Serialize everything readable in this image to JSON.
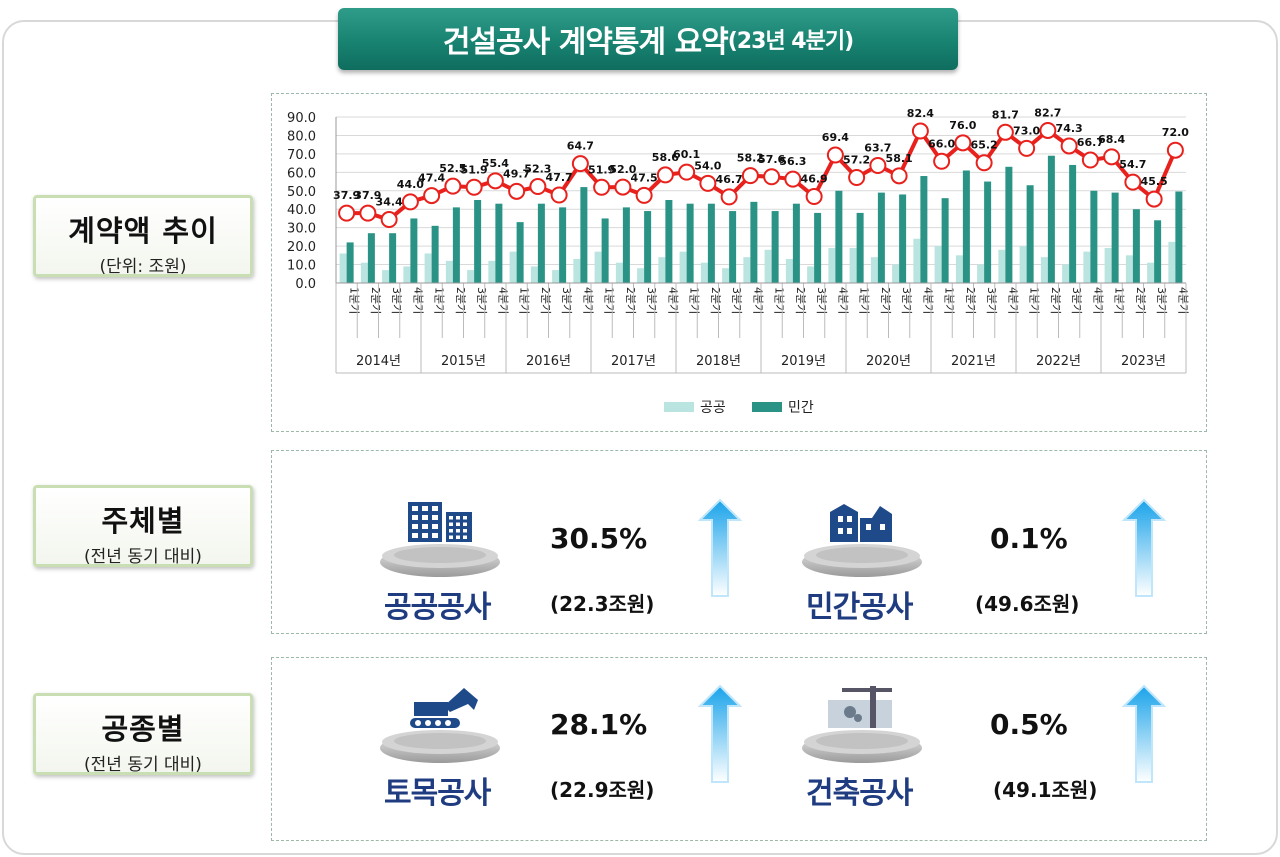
{
  "title": {
    "main": "건설공사 계약통계 요약",
    "sub": "(23년 4분기)"
  },
  "sections": [
    {
      "title": "계약액 추이",
      "subtitle": "(단위: 조원)"
    },
    {
      "title": "주체별",
      "subtitle": "(전년 동기 대비)"
    },
    {
      "title": "공종별",
      "subtitle": "(전년 동기 대비)"
    }
  ],
  "by_owner": [
    {
      "name": "공공공사",
      "icon": "public-buildings-icon",
      "change": "30.5%",
      "direction": "up",
      "amount": "(22.3조원)"
    },
    {
      "name": "민간공사",
      "icon": "private-building-icon",
      "change": "0.1%",
      "direction": "up",
      "amount": "(49.6조원)"
    }
  ],
  "by_type": [
    {
      "name": "토목공사",
      "icon": "excavator-icon",
      "change": "28.1%",
      "direction": "up",
      "amount": "(22.9조원)"
    },
    {
      "name": "건축공사",
      "icon": "tower-crane-icon",
      "change": "0.5%",
      "direction": "up",
      "amount": "(49.1조원)"
    }
  ],
  "colors": {
    "public": "#b9e4df",
    "private": "#2a9385",
    "total": "#e8211d",
    "banner": "#17806f",
    "name_text": "#1f3c80",
    "arrow": "#1aa3ea"
  },
  "chart_data": {
    "type": "bar+line",
    "ylim": [
      0,
      90
    ],
    "yticks": [
      "0.0",
      "10.0",
      "20.0",
      "30.0",
      "40.0",
      "50.0",
      "60.0",
      "70.0",
      "80.0",
      "90.0"
    ],
    "grid": true,
    "legend_position": "bottom",
    "quarter_labels": [
      "1분기",
      "2분기",
      "3분기",
      "4분기"
    ],
    "years": [
      "2014년",
      "2015년",
      "2016년",
      "2017년",
      "2018년",
      "2019년",
      "2020년",
      "2021년",
      "2022년",
      "2023년"
    ],
    "series": [
      {
        "name": "공공",
        "type": "bar",
        "values": [
          16,
          11,
          7,
          9,
          16,
          12,
          7,
          12,
          17,
          9,
          7,
          13,
          17,
          11,
          8,
          14,
          17,
          11,
          8,
          14,
          18,
          13,
          9,
          19,
          19,
          14,
          10,
          24,
          20,
          15,
          10,
          18,
          20,
          14,
          10,
          17,
          19,
          15,
          11,
          22.3
        ]
      },
      {
        "name": "민간",
        "type": "bar",
        "values": [
          22,
          27,
          27,
          35,
          31,
          41,
          45,
          43,
          33,
          43,
          41,
          52,
          35,
          41,
          39,
          45,
          43,
          43,
          39,
          44,
          39,
          43,
          38,
          50,
          38,
          49,
          48,
          58,
          46,
          61,
          55,
          63,
          53,
          69,
          64,
          50,
          49,
          40,
          34,
          49.6
        ]
      },
      {
        "type": "line",
        "values": [
          37.9,
          37.9,
          34.4,
          44.0,
          47.4,
          52.5,
          51.9,
          55.4,
          49.7,
          52.3,
          47.7,
          64.7,
          51.9,
          52.0,
          47.5,
          58.6,
          60.1,
          54.0,
          46.7,
          58.2,
          57.6,
          56.3,
          46.9,
          69.4,
          57.2,
          63.7,
          58.1,
          82.4,
          66.0,
          76.0,
          65.2,
          81.7,
          73.0,
          82.7,
          74.3,
          66.7,
          68.4,
          54.7,
          45.5,
          72.0
        ]
      }
    ]
  }
}
